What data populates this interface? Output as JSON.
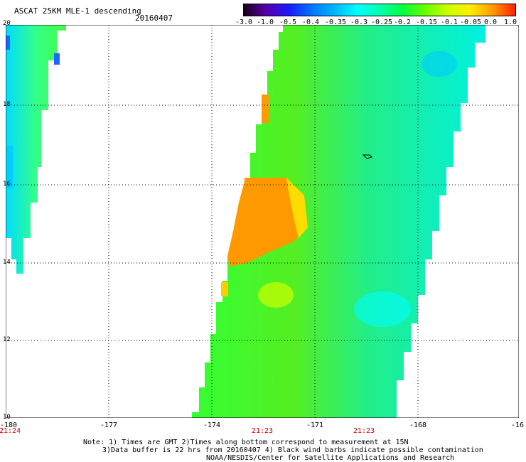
{
  "header": {
    "title": "ASCAT 25KM MLE-1 descending",
    "date": "20160407"
  },
  "colorbar": {
    "labels": [
      "-3.0",
      "-1.0",
      "-0.5",
      "-0.4",
      "-0.35",
      "-0.3",
      "-0.25",
      "-0.2",
      "-0.15",
      "-0.1",
      "-0.05",
      "0.0",
      "1.0"
    ],
    "colors": [
      "#1a001a",
      "#5500aa",
      "#1a1aff",
      "#0077ff",
      "#00b4ff",
      "#00ffff",
      "#00ffb0",
      "#00ff40",
      "#66ff00",
      "#ccff00",
      "#ffee00",
      "#ff9900",
      "#ff2000"
    ]
  },
  "axes": {
    "lat_labels": [
      "20",
      "18",
      "16",
      "14",
      "12",
      "10"
    ],
    "lon_labels": [
      "-180",
      "-177",
      "-174",
      "-171",
      "-168",
      "-16"
    ],
    "time_labels": [
      "21:24",
      "21:23",
      "21:23"
    ]
  },
  "notes": {
    "line1": "Note: 1) Times are GMT 2)Times along bottom correspond to measurement at 15N",
    "line2": "3)Data buffer is 22 hrs from 20160407 4) Black wind barbs indicate possible contamination",
    "line3": "NOAA/NESDIS/Center for Satellite Applications and Research"
  }
}
